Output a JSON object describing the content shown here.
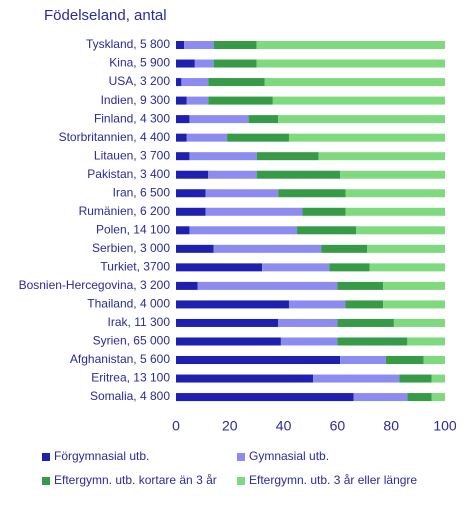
{
  "chart_data": {
    "type": "stacked-barh",
    "title": "Födelseland, antal",
    "categories": [
      "Tyskland, 5 800",
      "Kina, 5 900",
      "USA, 3 200",
      "Indien, 9 300",
      "Finland, 4 300",
      "Storbritannien, 4 400",
      "Litauen, 3 700",
      "Pakistan, 3 400",
      "Iran, 6 500",
      "Rumänien, 6 200",
      "Polen, 14 100",
      "Serbien, 3 000",
      "Turkiet, 3700",
      "Bosnien-Hercegovina, 3 200",
      "Thailand, 4 000",
      "Irak, 11 300",
      "Syrien, 65 000",
      "Afghanistan, 5 600",
      "Eritrea, 13 100",
      "Somalia, 4 800"
    ],
    "series": [
      {
        "name": "Förgymnasial utb.",
        "color": "#1f1fb0",
        "values": [
          3,
          7,
          2,
          4,
          5,
          4,
          5,
          12,
          11,
          11,
          5,
          14,
          32,
          8,
          42,
          38,
          39,
          61,
          51,
          66
        ]
      },
      {
        "name": "Gymnasial utb.",
        "color": "#8c8cf0",
        "values": [
          11,
          7,
          10,
          8,
          22,
          15,
          25,
          18,
          27,
          36,
          40,
          40,
          25,
          52,
          21,
          22,
          21,
          17,
          32,
          20
        ]
      },
      {
        "name": "Eftergymn. utb. kortare än 3 år",
        "color": "#379a46",
        "values": [
          16,
          16,
          21,
          24,
          11,
          23,
          23,
          31,
          25,
          16,
          22,
          17,
          15,
          17,
          14,
          21,
          26,
          14,
          12,
          9
        ]
      },
      {
        "name": "Eftergymn. utb. 3 år eller längre",
        "color": "#7fd97f",
        "values": [
          70,
          70,
          67,
          64,
          62,
          58,
          47,
          39,
          37,
          37,
          33,
          29,
          28,
          23,
          23,
          19,
          14,
          8,
          5,
          5
        ]
      }
    ],
    "xlim": [
      0,
      100
    ],
    "xticks": [
      0,
      20,
      40,
      60,
      80,
      100
    ]
  }
}
